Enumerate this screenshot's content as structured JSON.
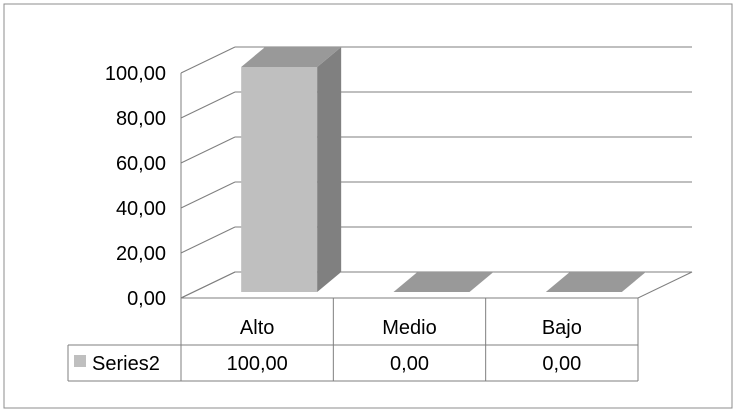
{
  "chart_data": {
    "type": "bar",
    "title": "",
    "xlabel": "",
    "ylabel": "",
    "categories": [
      "Alto",
      "Medio",
      "Bajo"
    ],
    "series": [
      {
        "name": "Series2",
        "values": [
          100.0,
          0.0,
          0.0
        ],
        "color": "#bfbfbf",
        "side_color": "#808080",
        "top_color": "#999999"
      }
    ],
    "ylim": [
      0,
      100
    ],
    "y_ticks": [
      "0,00",
      "20,00",
      "40,00",
      "60,00",
      "80,00",
      "100,00"
    ],
    "y_tick_values": [
      0,
      20,
      40,
      60,
      80,
      100
    ],
    "data_table": {
      "legend_label": "Series2",
      "values": [
        "100,00",
        "0,00",
        "0,00"
      ]
    },
    "grid": true,
    "legend": "data-table"
  }
}
